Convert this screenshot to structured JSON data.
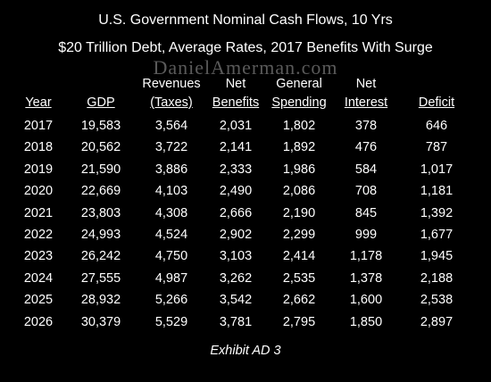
{
  "chart_data": {
    "type": "table",
    "title": "U.S. Government Nominal Cash Flows, 10 Yrs",
    "subtitle": "$20 Trillion Debt, Average Rates, 2017 Benefits With Surge",
    "watermark": "DanielAmerman.com",
    "caption": "Exhibit AD 3",
    "header_top": [
      "",
      "",
      "Revenues",
      "Net",
      "General",
      "Net",
      ""
    ],
    "header_bottom": [
      "Year",
      "GDP",
      "(Taxes)",
      "Benefits",
      "Spending",
      "Interest",
      "Deficit"
    ],
    "rows": [
      [
        "2017",
        "19,583",
        "3,564",
        "2,031",
        "1,802",
        "378",
        "646"
      ],
      [
        "2018",
        "20,562",
        "3,722",
        "2,141",
        "1,892",
        "476",
        "787"
      ],
      [
        "2019",
        "21,590",
        "3,886",
        "2,333",
        "1,986",
        "584",
        "1,017"
      ],
      [
        "2020",
        "22,669",
        "4,103",
        "2,490",
        "2,086",
        "708",
        "1,181"
      ],
      [
        "2021",
        "23,803",
        "4,308",
        "2,666",
        "2,190",
        "845",
        "1,392"
      ],
      [
        "2022",
        "24,993",
        "4,524",
        "2,902",
        "2,299",
        "999",
        "1,677"
      ],
      [
        "2023",
        "26,242",
        "4,750",
        "3,103",
        "2,414",
        "1,178",
        "1,945"
      ],
      [
        "2024",
        "27,555",
        "4,987",
        "3,262",
        "2,535",
        "1,378",
        "2,188"
      ],
      [
        "2025",
        "28,932",
        "5,266",
        "3,542",
        "2,662",
        "1,600",
        "2,538"
      ],
      [
        "2026",
        "30,379",
        "5,529",
        "3,781",
        "2,795",
        "1,850",
        "2,897"
      ]
    ]
  }
}
